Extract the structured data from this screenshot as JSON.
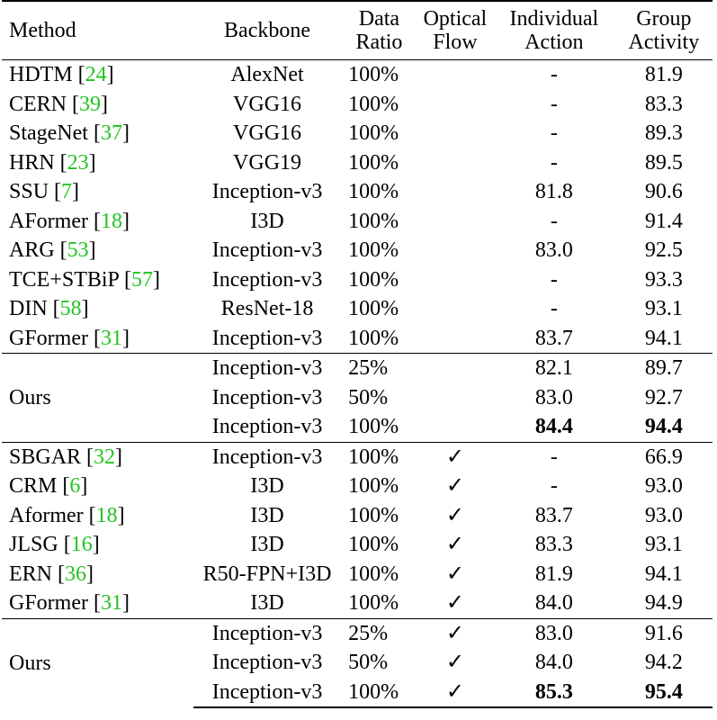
{
  "header": {
    "method": "Method",
    "backbone": "Backbone",
    "data_ratio": [
      "Data",
      "Ratio"
    ],
    "optical_flow": [
      "Optical",
      "Flow"
    ],
    "individual_action": [
      "Individual",
      "Action"
    ],
    "group_activity": [
      "Group",
      "Activity"
    ]
  },
  "section1": [
    {
      "method": "HDTM",
      "ref": "24",
      "backbone": "AlexNet",
      "ratio": "100%",
      "flow": "",
      "ind": "-",
      "grp": "81.9"
    },
    {
      "method": "CERN",
      "ref": "39",
      "backbone": "VGG16",
      "ratio": "100%",
      "flow": "",
      "ind": "-",
      "grp": "83.3"
    },
    {
      "method": "StageNet",
      "ref": "37",
      "backbone": "VGG16",
      "ratio": "100%",
      "flow": "",
      "ind": "-",
      "grp": "89.3"
    },
    {
      "method": "HRN",
      "ref": "23",
      "backbone": "VGG19",
      "ratio": "100%",
      "flow": "",
      "ind": "-",
      "grp": "89.5"
    },
    {
      "method": "SSU",
      "ref": "7",
      "backbone": "Inception-v3",
      "ratio": "100%",
      "flow": "",
      "ind": "81.8",
      "grp": "90.6"
    },
    {
      "method": "AFormer",
      "ref": "18",
      "backbone": "I3D",
      "ratio": "100%",
      "flow": "",
      "ind": "-",
      "grp": "91.4"
    },
    {
      "method": "ARG",
      "ref": "53",
      "backbone": "Inception-v3",
      "ratio": "100%",
      "flow": "",
      "ind": "83.0",
      "grp": "92.5"
    },
    {
      "method": "TCE+STBiP",
      "ref": "57",
      "backbone": "Inception-v3",
      "ratio": "100%",
      "flow": "",
      "ind": "-",
      "grp": "93.3"
    },
    {
      "method": "DIN",
      "ref": "58",
      "backbone": "ResNet-18",
      "ratio": "100%",
      "flow": "",
      "ind": "-",
      "grp": "93.1"
    },
    {
      "method": "GFormer",
      "ref": "31",
      "backbone": "Inception-v3",
      "ratio": "100%",
      "flow": "",
      "ind": "83.7",
      "grp": "94.1"
    }
  ],
  "ours1": {
    "label": "Ours",
    "rows": [
      {
        "backbone": "Inception-v3",
        "ratio": "25%",
        "flow": "",
        "ind": "82.1",
        "grp": "89.7"
      },
      {
        "backbone": "Inception-v3",
        "ratio": "50%",
        "flow": "",
        "ind": "83.0",
        "grp": "92.7"
      },
      {
        "backbone": "Inception-v3",
        "ratio": "100%",
        "flow": "",
        "ind": "84.4",
        "grp": "94.4"
      }
    ]
  },
  "section2": [
    {
      "method": "SBGAR",
      "ref": "32",
      "backbone": "Inception-v3",
      "ratio": "100%",
      "flow": "✓",
      "ind": "-",
      "grp": "66.9"
    },
    {
      "method": "CRM",
      "ref": "6",
      "backbone": "I3D",
      "ratio": "100%",
      "flow": "✓",
      "ind": "-",
      "grp": "93.0"
    },
    {
      "method": "Aformer",
      "ref": "18",
      "backbone": "I3D",
      "ratio": "100%",
      "flow": "✓",
      "ind": "83.7",
      "grp": "93.0"
    },
    {
      "method": "JLSG",
      "ref": "16",
      "backbone": "I3D",
      "ratio": "100%",
      "flow": "✓",
      "ind": "83.3",
      "grp": "93.1"
    },
    {
      "method": "ERN",
      "ref": "36",
      "backbone": "R50-FPN+I3D",
      "ratio": "100%",
      "flow": "✓",
      "ind": "81.9",
      "grp": "94.1"
    },
    {
      "method": "GFormer",
      "ref": "31",
      "backbone": "I3D",
      "ratio": "100%",
      "flow": "✓",
      "ind": "84.0",
      "grp": "94.9"
    }
  ],
  "ours2": {
    "label": "Ours",
    "rows": [
      {
        "backbone": "Inception-v3",
        "ratio": "25%",
        "flow": "✓",
        "ind": "83.0",
        "grp": "91.6"
      },
      {
        "backbone": "Inception-v3",
        "ratio": "50%",
        "flow": "✓",
        "ind": "84.0",
        "grp": "94.2"
      },
      {
        "backbone": "Inception-v3",
        "ratio": "100%",
        "flow": "✓",
        "ind": "85.3",
        "grp": "95.4"
      }
    ]
  }
}
